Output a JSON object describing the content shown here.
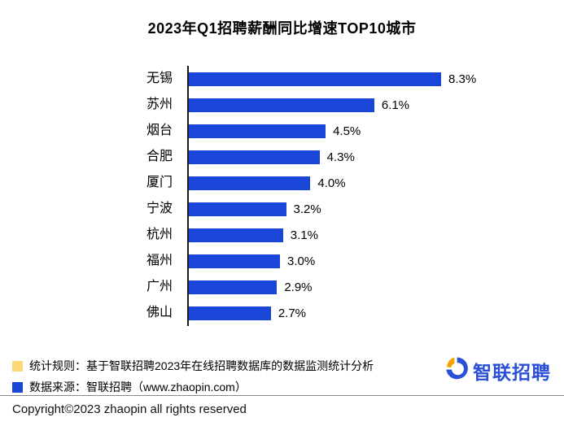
{
  "chart_data": {
    "type": "bar",
    "orientation": "horizontal",
    "title": "2023年Q1招聘薪酬同比增速TOP10城市",
    "categories": [
      "无锡",
      "苏州",
      "烟台",
      "合肥",
      "厦门",
      "宁波",
      "杭州",
      "福州",
      "广州",
      "佛山"
    ],
    "values": [
      8.3,
      6.1,
      4.5,
      4.3,
      4.0,
      3.2,
      3.1,
      3.0,
      2.9,
      2.7
    ],
    "value_suffix": "%",
    "xlim": [
      0,
      9
    ],
    "bar_color": "#1a46d8",
    "axis_line": true,
    "grid": false,
    "legend": "none"
  },
  "footnotes": {
    "rule": {
      "label": "统计规则：基于智联招聘2023年在线招聘数据库的数据监测统计分析",
      "swatch_color": "#fcd878"
    },
    "source": {
      "label": "数据来源：智联招聘（www.zhaopin.com）",
      "swatch_color": "#1a46d8"
    }
  },
  "logo": {
    "text": "智联招聘",
    "blue": "#2b50d8",
    "orange": "#f7a100"
  },
  "footer": {
    "copyright": "Copyright©2023 zhaopin all rights reserved"
  }
}
